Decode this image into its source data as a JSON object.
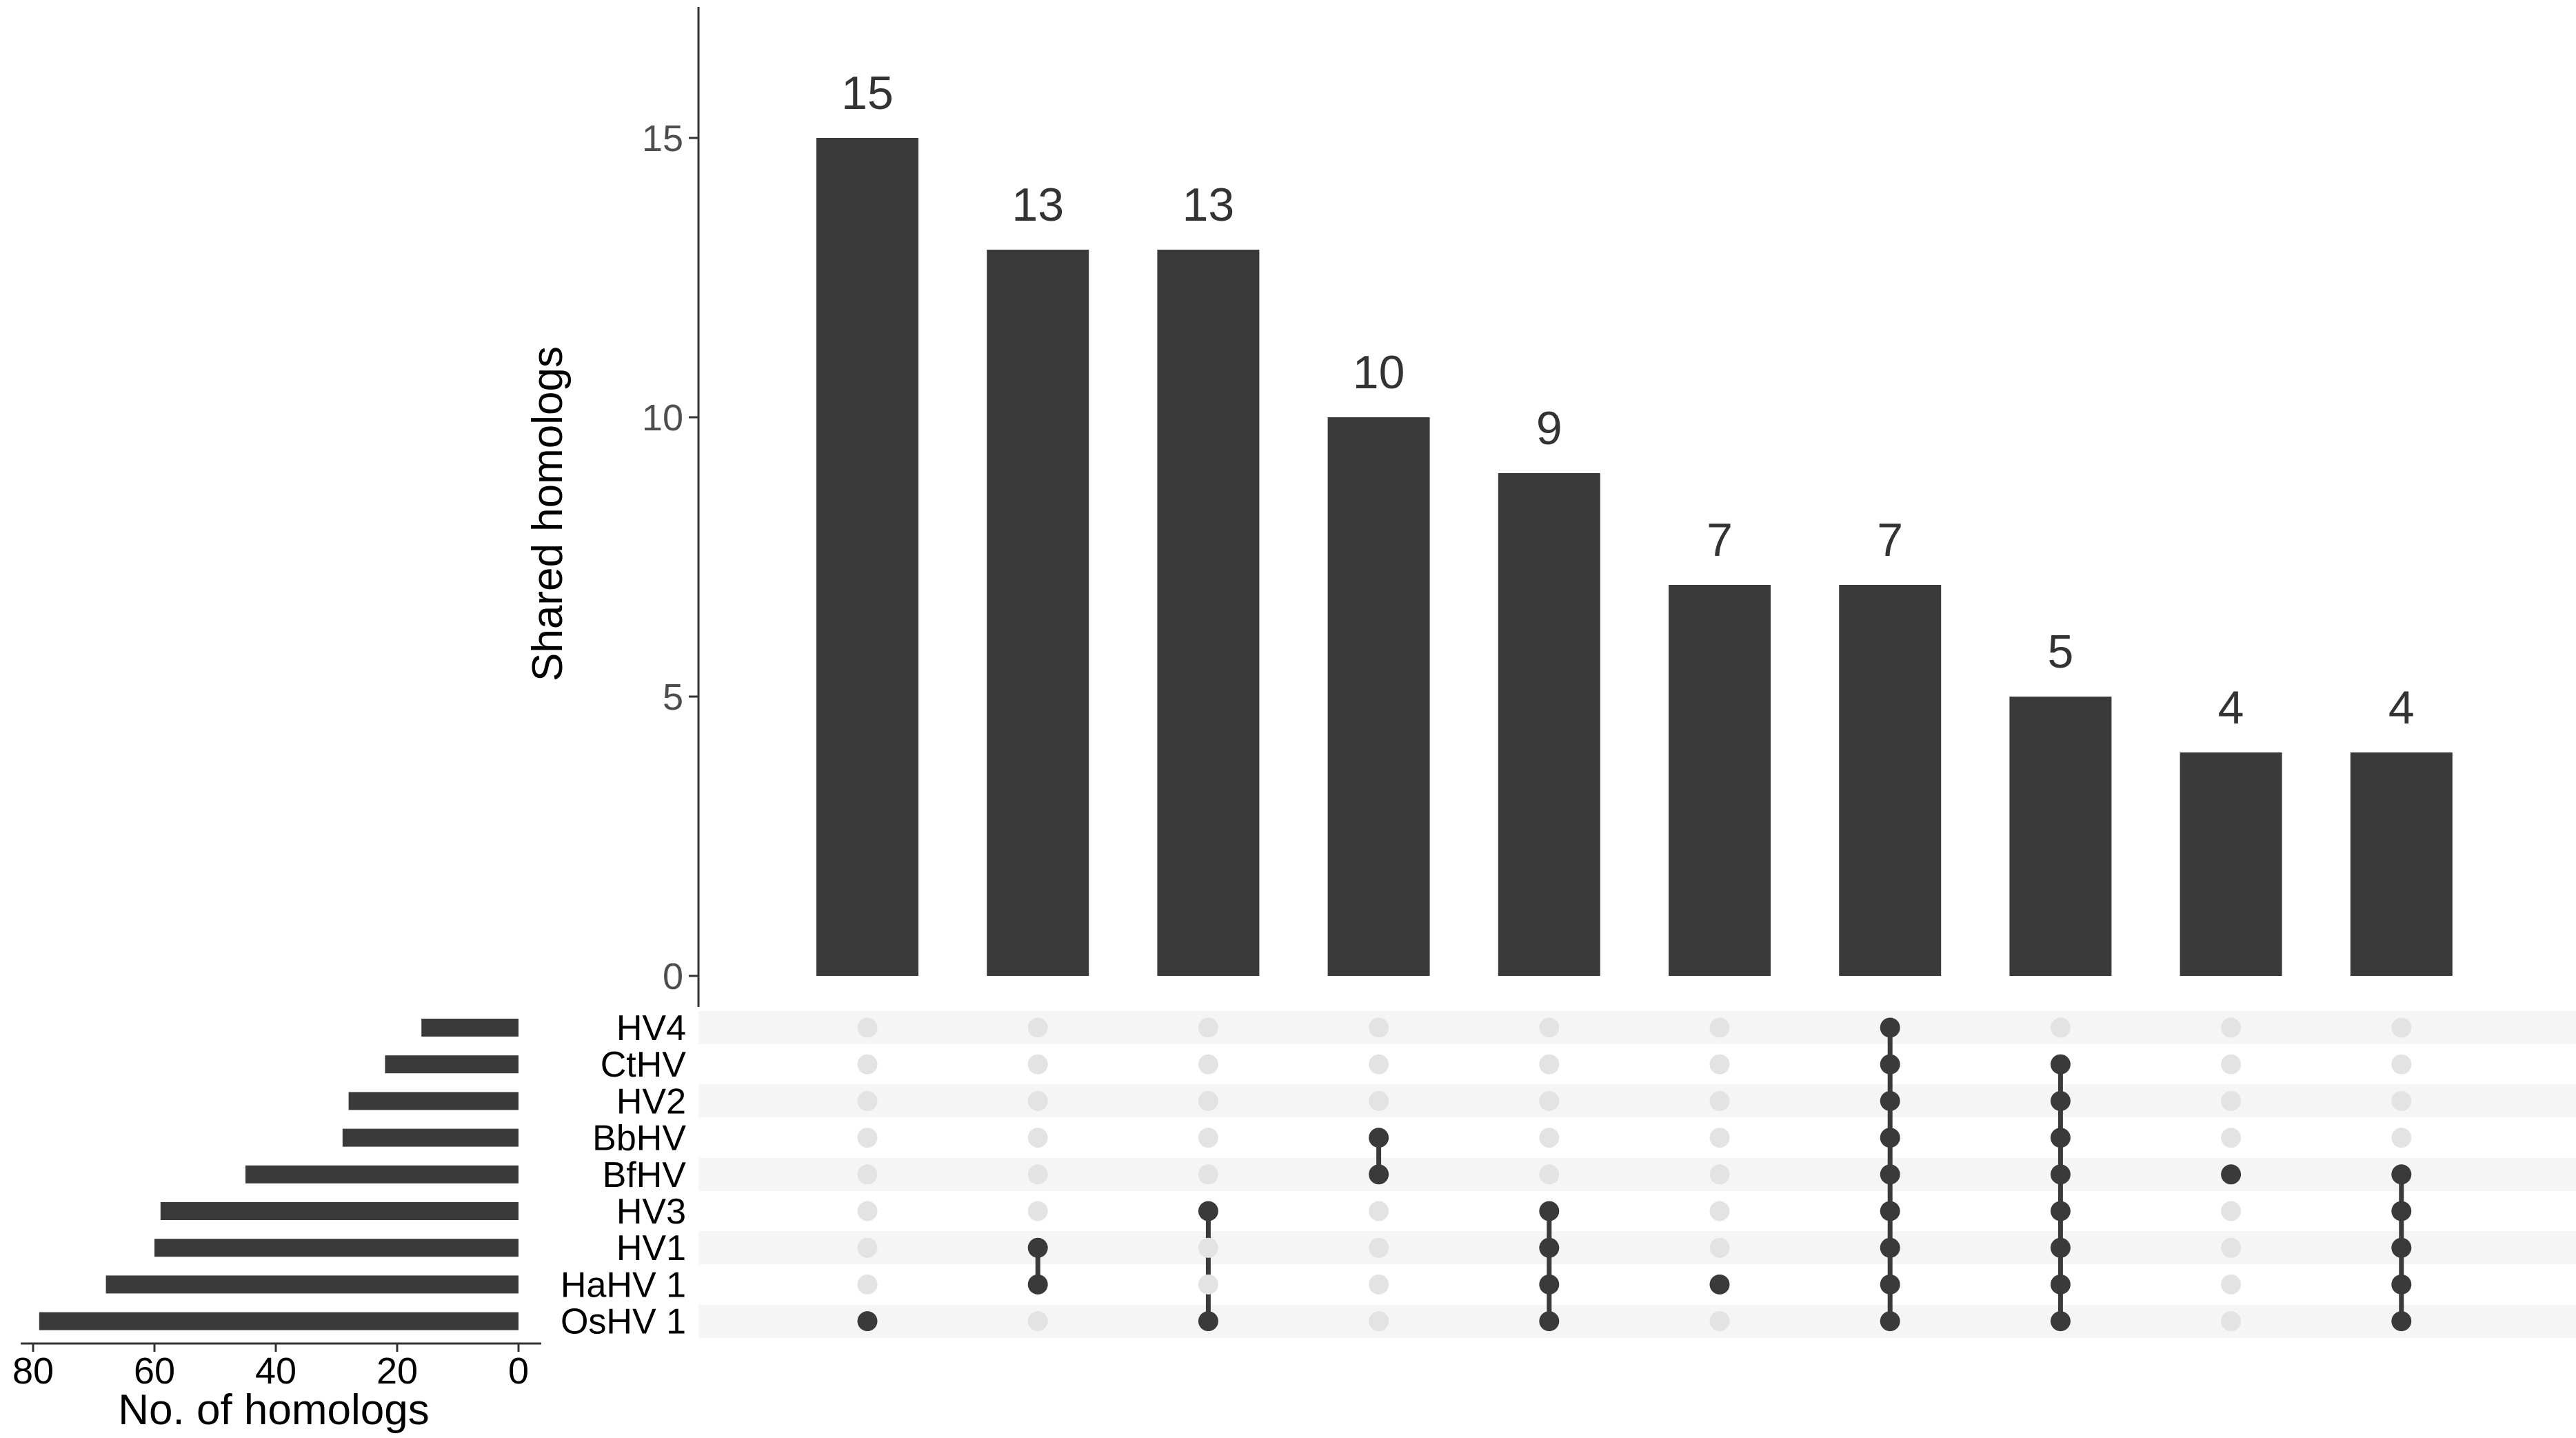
{
  "chart_data": {
    "type": "upset",
    "ylabel": "Shared homologs",
    "ylim": [
      0,
      17.3
    ],
    "yticks": [
      0,
      5,
      10,
      15
    ],
    "sets": [
      "HV4",
      "CtHV",
      "HV2",
      "BbHV",
      "BfHV",
      "HV3",
      "HV1",
      "HaHV 1",
      "OsHV 1"
    ],
    "set_sizes": [
      16,
      22,
      28,
      29,
      45,
      59,
      60,
      68,
      79
    ],
    "set_size_xlabel": "No. of homologs",
    "set_size_ticks": [
      80,
      60,
      40,
      20,
      0
    ],
    "intersections": [
      {
        "value": 15,
        "label": "15",
        "members": [
          "OsHV 1"
        ]
      },
      {
        "value": 13,
        "label": "13",
        "members": [
          "HV1",
          "HaHV 1"
        ]
      },
      {
        "value": 13,
        "label": "13",
        "members": [
          "HV3",
          "OsHV 1"
        ]
      },
      {
        "value": 10,
        "label": "10",
        "members": [
          "BbHV",
          "BfHV"
        ]
      },
      {
        "value": 9,
        "label": "9",
        "members": [
          "HV3",
          "HV1",
          "HaHV 1",
          "OsHV 1"
        ]
      },
      {
        "value": 7,
        "label": "7",
        "members": [
          "HaHV 1"
        ]
      },
      {
        "value": 7,
        "label": "7",
        "members": [
          "HV4",
          "CtHV",
          "HV2",
          "BbHV",
          "BfHV",
          "HV3",
          "HV1",
          "HaHV 1",
          "OsHV 1"
        ]
      },
      {
        "value": 5,
        "label": "5",
        "members": [
          "CtHV",
          "HV2",
          "BbHV",
          "BfHV",
          "HV3",
          "HV1",
          "HaHV 1",
          "OsHV 1"
        ]
      },
      {
        "value": 4,
        "label": "4",
        "members": [
          "BfHV"
        ]
      },
      {
        "value": 4,
        "label": "4",
        "members": [
          "BfHV",
          "HV3",
          "HV1",
          "HaHV 1",
          "OsHV 1"
        ]
      }
    ],
    "colors": {
      "bar": "#3a3a3a",
      "dot_on": "#3a3a3a",
      "dot_off": "#e3e3e3",
      "stripe": "#f5f5f5"
    },
    "grid": false
  }
}
